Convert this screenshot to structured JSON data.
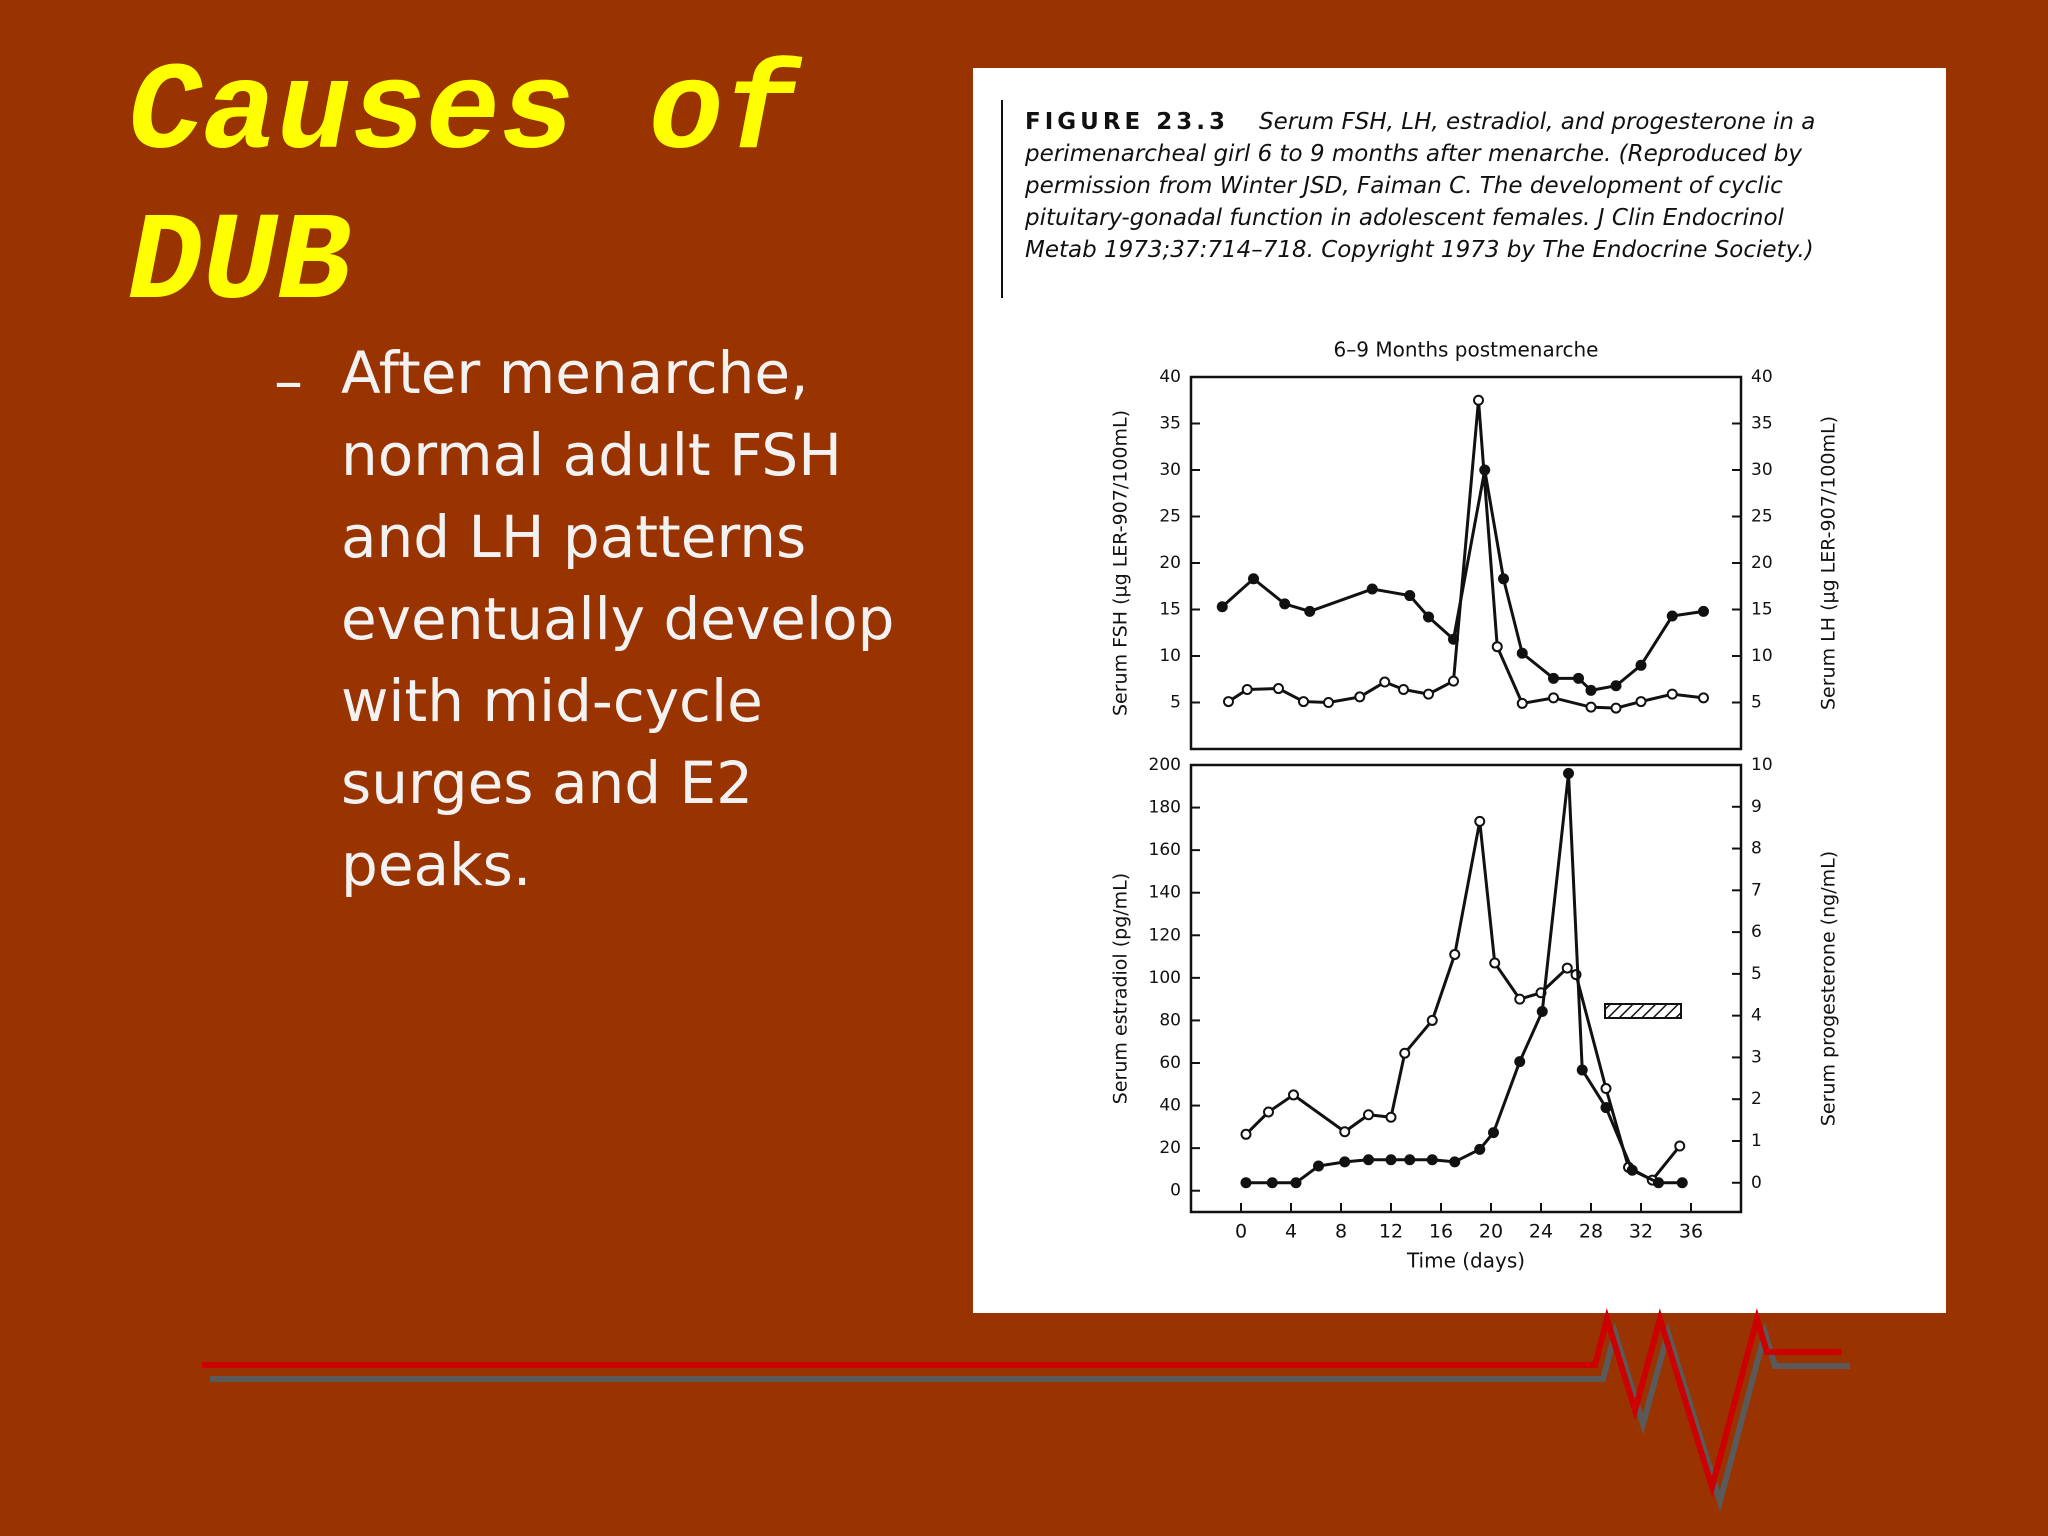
{
  "slide": {
    "title": "Causes of DUB",
    "bullet": "After menarche, normal adult FSH and LH patterns eventually develop with mid-cycle surges and E2 peaks."
  },
  "figure": {
    "label": "FIGURE 23.3",
    "caption": "Serum FSH, LH, estradiol, and progesterone in a perimenarcheal girl 6 to 9 months after menarche. (Reproduced by permission from Winter JSD, Faiman C. The development of cyclic pituitary-gonadal function in adolescent females. J Clin Endocrinol Metab 1973;37:714–718. Copyright 1973 by The Endocrine Society.)"
  },
  "chart_data": [
    {
      "type": "line",
      "title": "6–9 Months postmenarche",
      "y_label": "Serum FSH (µg LER-907/100mL)",
      "y2_label": "Serum LH (µg LER-907/100mL)",
      "xlim": [
        -4,
        40
      ],
      "ylim": [
        0,
        40
      ],
      "yticks": [
        5,
        10,
        15,
        20,
        25,
        30,
        35,
        40
      ],
      "y2lim": [
        0,
        40
      ],
      "y2ticks": [
        5,
        10,
        15,
        20,
        25,
        30,
        35,
        40
      ],
      "series": [
        {
          "color": "#111111",
          "marker": "filled",
          "x": [
            -1.5,
            1,
            3.5,
            5.5,
            10.5,
            13.5,
            15,
            17,
            19.5,
            21,
            22.5,
            25,
            27,
            28,
            30,
            32,
            34.5,
            37
          ],
          "values": [
            15.3,
            18.3,
            15.6,
            14.8,
            17.2,
            16.5,
            14.2,
            11.8,
            30,
            18.3,
            10.3,
            7.6,
            7.6,
            6.3,
            6.8,
            9,
            14.3,
            14.8
          ]
        },
        {
          "color": "#111111",
          "marker": "open",
          "axis": "y2",
          "x": [
            -1,
            0.5,
            3,
            5,
            7,
            9.5,
            11.5,
            13,
            15,
            17,
            19,
            20.5,
            22.5,
            25,
            28,
            30,
            32,
            34.5,
            37
          ],
          "values": [
            5.1,
            6.4,
            6.5,
            5.1,
            5.0,
            5.6,
            7.2,
            6.4,
            5.9,
            7.3,
            37.5,
            11,
            4.9,
            5.5,
            4.5,
            4.4,
            5.1,
            5.9,
            5.5
          ]
        }
      ]
    },
    {
      "type": "line",
      "y_label": "Serum estradiol (pg/mL)",
      "y2_label": "Serum progesterone (ng/mL)",
      "x_label": "Time (days)",
      "xlim": [
        -4,
        40
      ],
      "xticks": [
        0,
        4,
        8,
        12,
        16,
        20,
        24,
        28,
        32,
        36
      ],
      "ylim": [
        -10,
        200
      ],
      "yticks": [
        0,
        20,
        40,
        60,
        80,
        100,
        120,
        140,
        160,
        180,
        200
      ],
      "y2lim": [
        -0.7,
        10
      ],
      "y2ticks": [
        0,
        1,
        2,
        3,
        4,
        5,
        6,
        7,
        8,
        9,
        10
      ],
      "series": [
        {
          "color": "#111111",
          "marker": "open",
          "x": [
            0.4,
            2.2,
            4.2,
            8.3,
            10.2,
            12,
            13.1,
            15.3,
            17.1,
            19.1,
            20.3,
            22.3,
            24,
            26.1,
            26.8,
            29.2,
            31,
            32.9,
            35.1
          ],
          "values": [
            26.5,
            37,
            45,
            27.7,
            35.7,
            34.5,
            64.6,
            80,
            111,
            173.5,
            107,
            90,
            93,
            104.6,
            101.5,
            48,
            11,
            5,
            21
          ]
        },
        {
          "color": "#111111",
          "marker": "filled",
          "axis": "y2",
          "x": [
            0.4,
            2.5,
            4.4,
            6.2,
            8.3,
            10.2,
            12,
            13.5,
            15.3,
            17.1,
            19.1,
            20.2,
            22.3,
            24.1,
            26.2,
            27.3,
            29.2,
            31.3,
            33.4,
            35.3
          ],
          "values": [
            0,
            0,
            0,
            0.4,
            0.5,
            0.55,
            0.55,
            0.55,
            0.55,
            0.5,
            0.8,
            1.2,
            2.9,
            4.1,
            9.8,
            2.7,
            1.8,
            0.3,
            0,
            0
          ]
        }
      ]
    }
  ]
}
